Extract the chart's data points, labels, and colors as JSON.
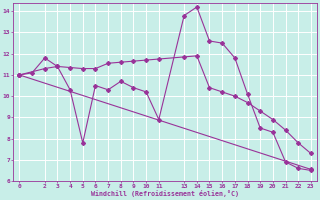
{
  "xlabel": "Windchill (Refroidissement éolien,°C)",
  "background_color": "#c8eee8",
  "grid_color": "#ffffff",
  "line_color": "#993399",
  "xlim": [
    -0.5,
    23.5
  ],
  "ylim": [
    6,
    14.4
  ],
  "yticks": [
    6,
    7,
    8,
    9,
    10,
    11,
    12,
    13,
    14
  ],
  "xticks": [
    0,
    2,
    3,
    4,
    5,
    6,
    7,
    8,
    9,
    10,
    11,
    13,
    14,
    15,
    16,
    17,
    18,
    19,
    20,
    21,
    22,
    23
  ],
  "series1_x": [
    0,
    1,
    2,
    3,
    4,
    5,
    6,
    7,
    8,
    9,
    10,
    11,
    13,
    14,
    15,
    16,
    17,
    18,
    19,
    20,
    21,
    22,
    23
  ],
  "series1_y": [
    11.0,
    11.1,
    11.8,
    11.4,
    10.3,
    7.8,
    10.5,
    10.3,
    10.7,
    10.4,
    10.2,
    8.9,
    13.8,
    14.2,
    12.6,
    12.5,
    11.8,
    10.1,
    8.5,
    8.3,
    6.9,
    6.6,
    6.5
  ],
  "series2_x": [
    0,
    2,
    3,
    4,
    5,
    6,
    7,
    8,
    9,
    10,
    11,
    13,
    14,
    15,
    16,
    17,
    18,
    19,
    20,
    21,
    22,
    23
  ],
  "series2_y": [
    11.0,
    11.3,
    11.4,
    11.35,
    11.3,
    11.3,
    11.55,
    11.6,
    11.65,
    11.7,
    11.75,
    11.85,
    11.9,
    10.4,
    10.2,
    10.0,
    9.7,
    9.3,
    8.9,
    8.4,
    7.8,
    7.3
  ],
  "trend_x": [
    0,
    23
  ],
  "trend_y": [
    11.0,
    6.55
  ]
}
